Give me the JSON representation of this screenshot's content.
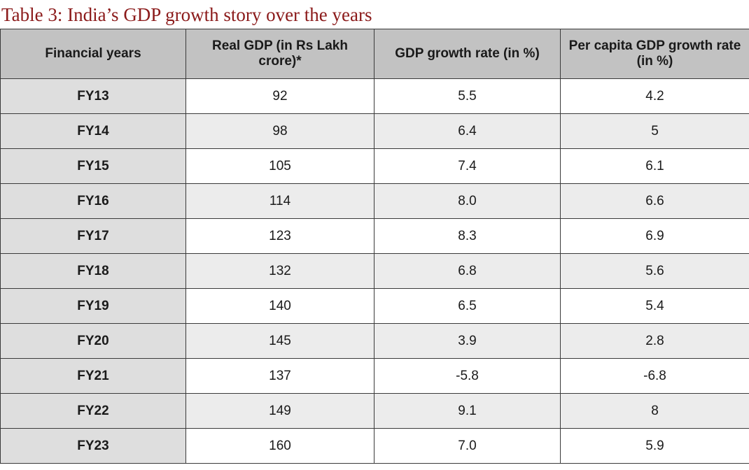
{
  "caption": "Table 3: India’s GDP growth story over the years",
  "table": {
    "headers": [
      "Financial years",
      "Real GDP (in Rs Lakh crore)*",
      "GDP growth rate (in %)",
      "Per capita GDP growth rate (in %)"
    ],
    "rows": [
      [
        "FY13",
        "92",
        "5.5",
        "4.2"
      ],
      [
        "FY14",
        "98",
        "6.4",
        "5"
      ],
      [
        "FY15",
        "105",
        "7.4",
        "6.1"
      ],
      [
        "FY16",
        "114",
        "8.0",
        "6.6"
      ],
      [
        "FY17",
        "123",
        "8.3",
        "6.9"
      ],
      [
        "FY18",
        "132",
        "6.8",
        "5.6"
      ],
      [
        "FY19",
        "140",
        "6.5",
        "5.4"
      ],
      [
        "FY20",
        "145",
        "3.9",
        "2.8"
      ],
      [
        "FY21",
        "137",
        "-5.8",
        "-6.8"
      ],
      [
        "FY22",
        "149",
        "9.1",
        "8"
      ],
      [
        "FY23",
        "160",
        "7.0",
        "5.9"
      ]
    ]
  }
}
